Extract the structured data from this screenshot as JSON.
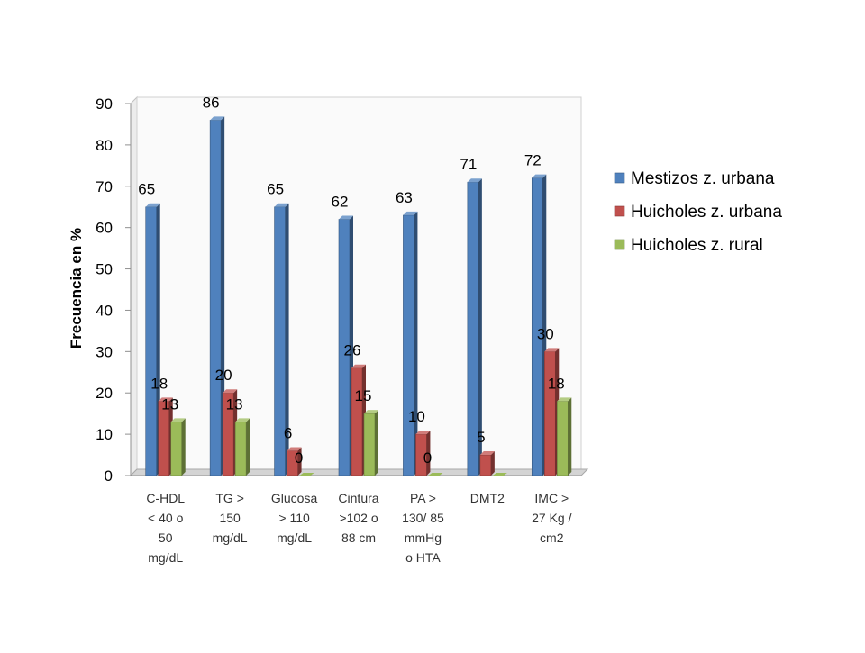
{
  "chart_data": {
    "type": "bar",
    "ylabel": "Frecuencia en %",
    "ylim": [
      0,
      90
    ],
    "yticks": [
      "0",
      "10",
      "20",
      "30",
      "40",
      "50",
      "60",
      "70",
      "80",
      "90"
    ],
    "grid": false,
    "legend_position": "right",
    "categories": [
      [
        "C-HDL",
        "< 40 o",
        "50",
        "mg/dL"
      ],
      [
        "TG >",
        "150",
        "mg/dL"
      ],
      [
        "Glucosa",
        "> 110",
        "mg/dL"
      ],
      [
        "Cintura",
        ">102 o",
        "88 cm"
      ],
      [
        "PA >",
        "130/ 85",
        "mmHg",
        "o HTA"
      ],
      [
        "DMT2"
      ],
      [
        "IMC >",
        "27 Kg /",
        "cm2"
      ]
    ],
    "series": [
      {
        "name": "Mestizos z. urbana",
        "color": "#4F81BD",
        "values": [
          65,
          86,
          65,
          62,
          63,
          71,
          72
        ],
        "labels": [
          "65",
          "86",
          "65",
          "62",
          "63",
          "71",
          "72"
        ]
      },
      {
        "name": "Huicholes  z. urbana",
        "color": "#C0504D",
        "values": [
          18,
          20,
          6,
          26,
          10,
          5,
          30
        ],
        "labels": [
          "18",
          "20",
          "6",
          "26",
          "10",
          "5",
          "30"
        ]
      },
      {
        "name": "Huicholes z. rural",
        "color": "#9BBB59",
        "values": [
          13,
          13,
          0,
          15,
          0,
          0,
          18
        ],
        "labels": [
          "13",
          "13",
          "0",
          "15",
          "0",
          "",
          "18"
        ]
      }
    ]
  }
}
